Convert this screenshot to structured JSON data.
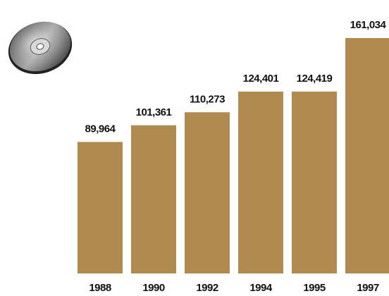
{
  "chart_data": {
    "type": "bar",
    "categories": [
      "1988",
      "1990",
      "1992",
      "1994",
      "1995",
      "1997"
    ],
    "values": [
      89964,
      101361,
      110273,
      124401,
      124419,
      161034
    ],
    "value_labels": [
      "89,964",
      "101,361",
      "110,273",
      "124,401",
      "124,419",
      "161,034"
    ],
    "title": "",
    "xlabel": "",
    "ylabel": "",
    "ylim": [
      0,
      161034
    ],
    "grid": false,
    "legend": "none"
  },
  "colors": {
    "bar": "#b08a4e",
    "text": "#111111"
  },
  "icons": {
    "decoration": "compact-disc-icon"
  }
}
